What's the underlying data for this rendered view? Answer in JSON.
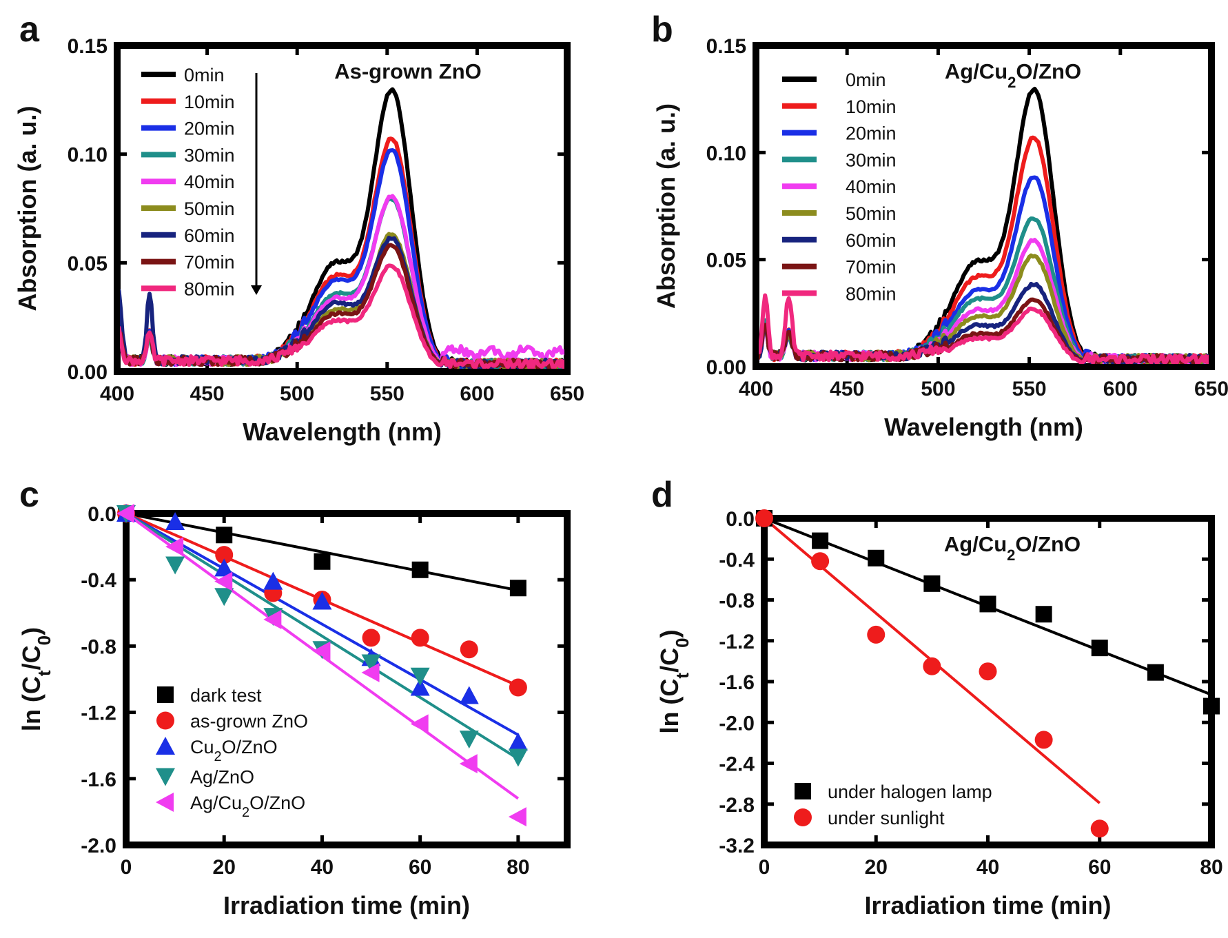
{
  "chart_data": [
    {
      "panel": "a",
      "type": "line",
      "annotation": "As-grown ZnO",
      "xlabel": "Wavelength (nm)",
      "ylabel": "Absorption (a. u.)",
      "xlim": [
        400,
        650
      ],
      "ylim": [
        0,
        0.15
      ],
      "xticks": [
        "400",
        "450",
        "500",
        "550",
        "600",
        "650"
      ],
      "yticks": [
        "0.00",
        "0.05",
        "0.10",
        "0.15"
      ],
      "legend_position": "top-left",
      "legend_arrow": "down",
      "series": [
        {
          "name": "0min",
          "color": "#000000",
          "peak": 0.125,
          "shoulder": 0.048
        },
        {
          "name": "10min",
          "color": "#ee1c1c",
          "peak": 0.103,
          "shoulder": 0.042
        },
        {
          "name": "20min",
          "color": "#1a2fe6",
          "peak": 0.098,
          "shoulder": 0.04
        },
        {
          "name": "30min",
          "color": "#1f8f8a",
          "peak": 0.076,
          "shoulder": 0.034
        },
        {
          "name": "40min",
          "color": "#f03cf0",
          "peak": 0.077,
          "shoulder": 0.032
        },
        {
          "name": "50min",
          "color": "#8c8c1e",
          "peak": 0.06,
          "shoulder": 0.027
        },
        {
          "name": "60min",
          "color": "#17237e",
          "peak": 0.058,
          "shoulder": 0.03
        },
        {
          "name": "70min",
          "color": "#7a1414",
          "peak": 0.055,
          "shoulder": 0.025
        },
        {
          "name": "80min",
          "color": "#f0287e",
          "peak": 0.046,
          "shoulder": 0.022
        }
      ]
    },
    {
      "panel": "b",
      "type": "line",
      "annotation": "Ag/Cu2O/ZnO",
      "xlabel": "Wavelength (nm)",
      "ylabel": "Absorption (a. u.)",
      "xlim": [
        400,
        650
      ],
      "ylim": [
        0,
        0.15
      ],
      "xticks": [
        "400",
        "450",
        "500",
        "550",
        "600",
        "650"
      ],
      "yticks": [
        "0.00",
        "0.05",
        "0.10",
        "0.15"
      ],
      "legend_position": "top-left",
      "series": [
        {
          "name": "0min",
          "color": "#000000",
          "peak": 0.125,
          "shoulder": 0.047
        },
        {
          "name": "10min",
          "color": "#ee1c1c",
          "peak": 0.103,
          "shoulder": 0.04
        },
        {
          "name": "20min",
          "color": "#1a2fe6",
          "peak": 0.085,
          "shoulder": 0.034
        },
        {
          "name": "30min",
          "color": "#1f8f8a",
          "peak": 0.066,
          "shoulder": 0.03
        },
        {
          "name": "40min",
          "color": "#f03cf0",
          "peak": 0.056,
          "shoulder": 0.025
        },
        {
          "name": "50min",
          "color": "#8c8c1e",
          "peak": 0.049,
          "shoulder": 0.022
        },
        {
          "name": "60min",
          "color": "#17237e",
          "peak": 0.036,
          "shoulder": 0.018
        },
        {
          "name": "70min",
          "color": "#7a1414",
          "peak": 0.029,
          "shoulder": 0.014
        },
        {
          "name": "80min",
          "color": "#f0287e",
          "peak": 0.025,
          "shoulder": 0.012
        }
      ]
    },
    {
      "panel": "c",
      "type": "scatter",
      "xlabel": "Irradiation time (min)",
      "ylabel": "ln (Ct/C0)",
      "xlim": [
        0,
        90
      ],
      "ylim": [
        -2.0,
        0.0
      ],
      "xticks": [
        "0",
        "20",
        "40",
        "60",
        "80"
      ],
      "yticks": [
        "0.0",
        "-0.4",
        "-0.8",
        "-1.2",
        "-1.6",
        "-2.0"
      ],
      "legend_position": "bottom-left",
      "series": [
        {
          "name": "dark test",
          "label_parts": [
            "dark test"
          ],
          "marker": "square",
          "color": "#000000",
          "x": [
            0,
            20,
            40,
            60,
            80
          ],
          "y": [
            0,
            -0.13,
            -0.29,
            -0.34,
            -0.45
          ],
          "fit_slope": -0.0058
        },
        {
          "name": "as-grown ZnO",
          "label_parts": [
            "as-grown ZnO"
          ],
          "marker": "circle",
          "color": "#ee1c1c",
          "x": [
            0,
            20,
            30,
            40,
            50,
            60,
            70,
            80
          ],
          "y": [
            0,
            -0.25,
            -0.48,
            -0.52,
            -0.75,
            -0.75,
            -0.82,
            -1.05
          ],
          "fit_slope": -0.013
        },
        {
          "name": "Cu2O/ZnO",
          "label_parts": [
            "Cu",
            "2",
            "O/ZnO"
          ],
          "marker": "triangle-up",
          "color": "#1a2fe6",
          "x": [
            0,
            10,
            20,
            30,
            40,
            50,
            60,
            70,
            80
          ],
          "y": [
            0,
            -0.05,
            -0.33,
            -0.41,
            -0.53,
            -0.87,
            -1.05,
            -1.1,
            -1.38
          ],
          "fit_slope": -0.0167
        },
        {
          "name": "Ag/ZnO",
          "label_parts": [
            "Ag/ZnO"
          ],
          "marker": "triangle-down",
          "color": "#1f8f8a",
          "x": [
            0,
            10,
            20,
            30,
            40,
            50,
            60,
            70,
            80
          ],
          "y": [
            0,
            -0.31,
            -0.5,
            -0.62,
            -0.82,
            -0.9,
            -0.98,
            -1.36,
            -1.47
          ],
          "fit_slope": -0.0185
        },
        {
          "name": "Ag/Cu2O/ZnO",
          "label_parts": [
            "Ag/Cu",
            "2",
            "O/ZnO"
          ],
          "marker": "triangle-left",
          "color": "#f03cf0",
          "x": [
            0,
            10,
            20,
            30,
            40,
            50,
            60,
            70,
            80
          ],
          "y": [
            0,
            -0.2,
            -0.41,
            -0.64,
            -0.83,
            -0.96,
            -1.27,
            -1.51,
            -1.83
          ],
          "fit_slope": -0.0215
        }
      ]
    },
    {
      "panel": "d",
      "type": "scatter",
      "annotation": "Ag/Cu2O/ZnO",
      "xlabel": "Irradiation time (min)",
      "ylabel": "ln (Ct/C0)",
      "xlim": [
        0,
        80
      ],
      "ylim": [
        -3.2,
        0.0
      ],
      "xticks": [
        "0",
        "20",
        "40",
        "60",
        "80"
      ],
      "yticks": [
        "0.0",
        "-0.4",
        "-0.8",
        "-1.2",
        "-1.6",
        "-2.0",
        "-2.4",
        "-2.8",
        "-3.2"
      ],
      "legend_position": "bottom-left",
      "series": [
        {
          "name": "under halogen lamp",
          "label_parts": [
            "under halogen lamp"
          ],
          "marker": "square",
          "color": "#000000",
          "x": [
            0,
            10,
            20,
            30,
            40,
            50,
            60,
            70,
            80
          ],
          "y": [
            0,
            -0.22,
            -0.39,
            -0.64,
            -0.84,
            -0.94,
            -1.27,
            -1.51,
            -1.84
          ],
          "fit_slope": -0.0216
        },
        {
          "name": "under sunlight",
          "label_parts": [
            "under sunlight"
          ],
          "marker": "circle",
          "color": "#ee1c1c",
          "x": [
            0,
            10,
            20,
            30,
            40,
            50,
            60
          ],
          "y": [
            0,
            -0.42,
            -1.14,
            -1.45,
            -1.5,
            -2.17,
            -3.04
          ],
          "fit_slope": -0.0465
        }
      ]
    }
  ],
  "panel_letters": [
    "a",
    "b",
    "c",
    "d"
  ]
}
